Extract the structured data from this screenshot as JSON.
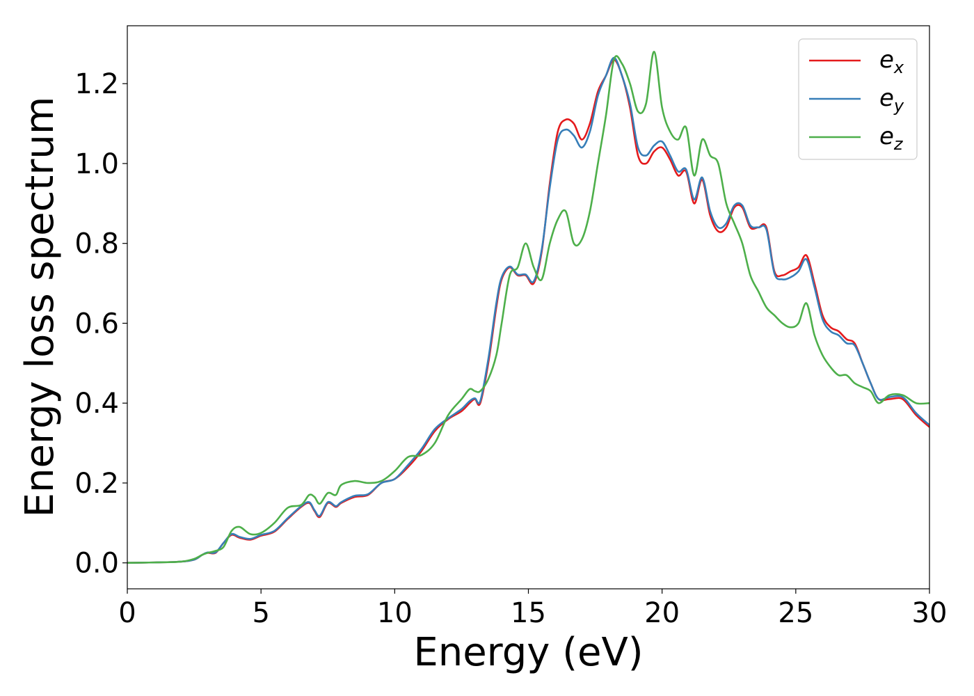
{
  "chart_data": {
    "type": "line",
    "xlabel": "Energy (eV)",
    "ylabel": "Energy loss spectrum",
    "xlim": [
      0,
      30
    ],
    "ylim": [
      -0.065,
      1.345
    ],
    "xticks": [
      0,
      5,
      10,
      15,
      20,
      25,
      30
    ],
    "xtick_labels": [
      "0",
      "5",
      "10",
      "15",
      "20",
      "25",
      "30"
    ],
    "yticks": [
      0.0,
      0.2,
      0.4,
      0.6,
      0.8,
      1.0,
      1.2
    ],
    "ytick_labels": [
      "0.0",
      "0.2",
      "0.4",
      "0.6",
      "0.8",
      "1.0",
      "1.2"
    ],
    "grid": false,
    "legend_position": "top-right",
    "series": [
      {
        "name": "e_x",
        "base": "e",
        "sub": "x",
        "color": "#e41a1c",
        "x": [
          0,
          1,
          2,
          2.5,
          2.8,
          3,
          3.3,
          3.6,
          3.9,
          4.2,
          4.6,
          5,
          5.5,
          6,
          6.5,
          6.8,
          7,
          7.2,
          7.5,
          7.8,
          8,
          8.5,
          9,
          9.5,
          10,
          10.5,
          11,
          11.5,
          12,
          12.5,
          12.8,
          13,
          13.2,
          13.5,
          13.8,
          14,
          14.3,
          14.6,
          14.9,
          15.2,
          15.5,
          15.8,
          16.1,
          16.4,
          16.7,
          17,
          17.3,
          17.6,
          17.9,
          18.2,
          18.5,
          18.8,
          19.1,
          19.4,
          19.7,
          20,
          20.3,
          20.6,
          20.9,
          21.2,
          21.5,
          21.8,
          22.1,
          22.4,
          22.7,
          23,
          23.3,
          23.6,
          23.9,
          24.2,
          24.5,
          24.8,
          25.1,
          25.4,
          25.7,
          26,
          26.3,
          26.6,
          26.9,
          27.2,
          27.5,
          27.8,
          28.1,
          28.5,
          29,
          29.5,
          30
        ],
        "y": [
          0,
          0.001,
          0.003,
          0.008,
          0.02,
          0.025,
          0.025,
          0.05,
          0.07,
          0.063,
          0.058,
          0.068,
          0.078,
          0.11,
          0.14,
          0.15,
          0.13,
          0.115,
          0.15,
          0.14,
          0.15,
          0.165,
          0.17,
          0.2,
          0.21,
          0.24,
          0.28,
          0.33,
          0.36,
          0.38,
          0.4,
          0.41,
          0.4,
          0.5,
          0.64,
          0.71,
          0.74,
          0.72,
          0.72,
          0.7,
          0.78,
          0.95,
          1.08,
          1.11,
          1.1,
          1.06,
          1.1,
          1.18,
          1.22,
          1.26,
          1.22,
          1.14,
          1.02,
          1.0,
          1.03,
          1.04,
          1.01,
          0.97,
          0.98,
          0.9,
          0.96,
          0.87,
          0.83,
          0.84,
          0.89,
          0.89,
          0.84,
          0.84,
          0.84,
          0.73,
          0.72,
          0.73,
          0.74,
          0.77,
          0.7,
          0.62,
          0.59,
          0.58,
          0.56,
          0.55,
          0.5,
          0.45,
          0.41,
          0.41,
          0.41,
          0.37,
          0.34
        ]
      },
      {
        "name": "e_y",
        "base": "e",
        "sub": "y",
        "color": "#377eb8",
        "x": [
          0,
          1,
          2,
          2.5,
          2.8,
          3,
          3.3,
          3.6,
          3.9,
          4.2,
          4.6,
          5,
          5.5,
          6,
          6.5,
          6.8,
          7,
          7.2,
          7.5,
          7.8,
          8,
          8.5,
          9,
          9.5,
          10,
          10.5,
          11,
          11.5,
          12,
          12.5,
          12.8,
          13,
          13.2,
          13.5,
          13.8,
          14,
          14.3,
          14.6,
          14.9,
          15.2,
          15.5,
          15.8,
          16.1,
          16.4,
          16.7,
          17,
          17.3,
          17.6,
          17.9,
          18.2,
          18.5,
          18.8,
          19.1,
          19.4,
          19.7,
          20,
          20.3,
          20.6,
          20.9,
          21.2,
          21.5,
          21.8,
          22.1,
          22.4,
          22.7,
          23,
          23.3,
          23.6,
          23.9,
          24.2,
          24.5,
          24.8,
          25.1,
          25.4,
          25.7,
          26,
          26.3,
          26.6,
          26.9,
          27.2,
          27.5,
          27.8,
          28.1,
          28.5,
          29,
          29.5,
          30
        ],
        "y": [
          0,
          0.001,
          0.003,
          0.008,
          0.02,
          0.026,
          0.026,
          0.05,
          0.072,
          0.065,
          0.06,
          0.07,
          0.08,
          0.112,
          0.142,
          0.152,
          0.132,
          0.118,
          0.152,
          0.142,
          0.152,
          0.168,
          0.172,
          0.2,
          0.21,
          0.245,
          0.285,
          0.335,
          0.362,
          0.385,
          0.405,
          0.412,
          0.405,
          0.51,
          0.65,
          0.715,
          0.742,
          0.722,
          0.722,
          0.705,
          0.785,
          0.94,
          1.06,
          1.085,
          1.07,
          1.04,
          1.08,
          1.17,
          1.22,
          1.265,
          1.22,
          1.15,
          1.04,
          1.02,
          1.045,
          1.055,
          1.02,
          0.98,
          0.985,
          0.91,
          0.965,
          0.88,
          0.84,
          0.85,
          0.895,
          0.895,
          0.845,
          0.84,
          0.835,
          0.725,
          0.71,
          0.715,
          0.73,
          0.76,
          0.69,
          0.61,
          0.58,
          0.57,
          0.55,
          0.545,
          0.5,
          0.45,
          0.41,
          0.415,
          0.415,
          0.375,
          0.345
        ]
      },
      {
        "name": "e_z",
        "base": "e",
        "sub": "z",
        "color": "#4daf4a",
        "x": [
          0,
          1,
          2,
          2.5,
          2.8,
          3,
          3.3,
          3.6,
          3.9,
          4.2,
          4.6,
          5,
          5.5,
          6,
          6.5,
          6.8,
          7,
          7.2,
          7.5,
          7.8,
          8,
          8.5,
          9,
          9.5,
          10,
          10.5,
          11,
          11.5,
          12,
          12.5,
          12.8,
          13,
          13.2,
          13.5,
          13.8,
          14,
          14.3,
          14.6,
          14.9,
          15.2,
          15.5,
          15.8,
          16.1,
          16.4,
          16.7,
          17,
          17.3,
          17.6,
          17.9,
          18.2,
          18.5,
          18.8,
          19.1,
          19.4,
          19.7,
          20,
          20.3,
          20.6,
          20.9,
          21.2,
          21.5,
          21.8,
          22.1,
          22.4,
          22.7,
          23,
          23.3,
          23.6,
          23.9,
          24.2,
          24.5,
          24.8,
          25.1,
          25.4,
          25.7,
          26,
          26.3,
          26.6,
          26.9,
          27.2,
          27.5,
          27.8,
          28.1,
          28.5,
          29,
          29.5,
          30
        ],
        "y": [
          0,
          0.001,
          0.003,
          0.01,
          0.02,
          0.025,
          0.03,
          0.04,
          0.08,
          0.09,
          0.072,
          0.075,
          0.1,
          0.138,
          0.145,
          0.17,
          0.165,
          0.148,
          0.175,
          0.17,
          0.195,
          0.205,
          0.2,
          0.205,
          0.23,
          0.265,
          0.27,
          0.3,
          0.37,
          0.41,
          0.435,
          0.43,
          0.43,
          0.46,
          0.52,
          0.6,
          0.72,
          0.74,
          0.8,
          0.74,
          0.71,
          0.8,
          0.86,
          0.88,
          0.8,
          0.81,
          0.88,
          1.0,
          1.12,
          1.26,
          1.25,
          1.2,
          1.13,
          1.15,
          1.28,
          1.14,
          1.08,
          1.06,
          1.09,
          0.97,
          1.06,
          1.02,
          1.0,
          0.9,
          0.85,
          0.8,
          0.72,
          0.68,
          0.64,
          0.62,
          0.6,
          0.59,
          0.6,
          0.65,
          0.57,
          0.52,
          0.49,
          0.47,
          0.47,
          0.45,
          0.44,
          0.43,
          0.4,
          0.42,
          0.42,
          0.4,
          0.4
        ]
      }
    ]
  }
}
